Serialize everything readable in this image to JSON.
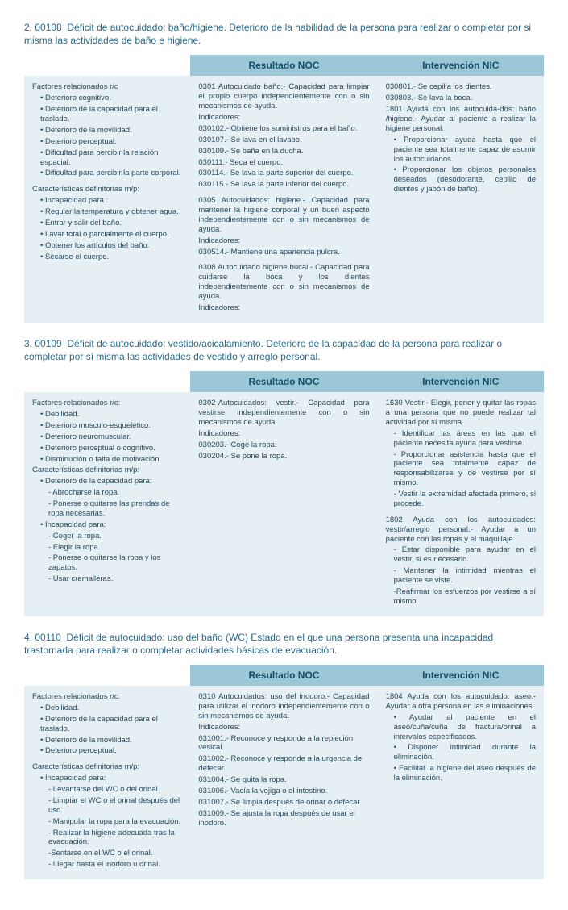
{
  "colors": {
    "header_bg": "#9cc7d6",
    "header_text": "#14506a",
    "cell_bg": "#e6eff3",
    "body_text": "#2a4a5a",
    "title_text": "#2a6a8a",
    "page_bg": "#ffffff"
  },
  "typography": {
    "body_font_size_pt": 9.5,
    "header_font_size_pt": 12,
    "title_font_size_pt": 12,
    "font_family": "Arial"
  },
  "headers": {
    "noc": "Resultado NOC",
    "nic": "Intervención NIC"
  },
  "sections": [
    {
      "num": "2. 00108",
      "title": "Déficit de autocuidado: baño/higiene. Deterioro de la habilidad de la persona para realizar o completar por si misma las actividades de baño e higiene.",
      "col1": {
        "group1_label": "Factores relacionados r/c",
        "group1_items": [
          "• Deterioro cognitivo.",
          "• Deterioro de la capacidad para el traslado.",
          "• Deterioro de la movilidad.",
          "• Deterioro perceptual.",
          "• Dificultad para percibir la relación espacial.",
          "• Dificultad para percibir la parte corporal."
        ],
        "group2_label": "Características definitorias m/p:",
        "group2_sub": "• Incapacidad para :",
        "group2_items": [
          "• Regular la temperatura y obtener agua.",
          "• Entrar y salir del baño.",
          "• Lavar total o parcialmente el cuerpo.",
          "• Obtener los artículos del baño.",
          "• Secarse el cuerpo."
        ]
      },
      "col2": {
        "block1_title": "0301 Autocuidado baño.- Capacidad para limpiar el propio cuerpo independientemente con o sin mecanismos de ayuda.",
        "block1_label": "Indicadores:",
        "block1_items": [
          "030102.- Obtiene los suministros para el baño.",
          "030107.- Se lava en el lavabo.",
          "030109.- Se baña en la ducha.",
          "030111.- Seca el cuerpo.",
          "030114.- Se lava la parte superior del cuerpo.",
          "030115.- Se lava la parte inferior del cuerpo."
        ],
        "block2_title": "0305 Autocuidados: higiene.- Capacidad para mantener la higiene corporal y un buen aspecto independientemente con o sin mecanismos de ayuda.",
        "block2_label": "Indicadores:",
        "block2_items": [
          "030514.- Mantiene una apariencia pulcra."
        ],
        "block3_title": "0308 Autocuidado higiene bucal.- Capacidad para cuidarse la boca y los dientes independientemente con o sin mecanismos de ayuda.",
        "block3_label": "Indicadores:"
      },
      "col3": {
        "lines": [
          "030801.- Se cepilla los dientes.",
          "030803.- Se lava la boca."
        ],
        "block1_title": "1801 Ayuda con los autocuida-dos: baño /higiene.- Ayudar al paciente a realizar la higiene personal.",
        "block1_items": [
          "• Proporcionar ayuda hasta que el paciente sea totalmente capaz de asumir los autocuidados.",
          "• Proporcionar los objetos personales deseados (desodorante, cepillo de dientes y jabón de baño)."
        ]
      }
    },
    {
      "num": "3. 00109",
      "title": "Déficit de autocuidado: vestido/acicalamiento. Deterioro de la capacidad de la persona para realizar o completar por sí misma las actividades de vestido y arreglo personal.",
      "col1": {
        "group1_label": "Factores relacionados r/c:",
        "group1_items": [
          "• Debilidad.",
          "• Deterioro musculo-esquelético.",
          "• Deterioro neuromuscular.",
          "• Deterioro perceptual o cognitivo.",
          "• Disminución o falta de motivación."
        ],
        "group2_label": "Características definitorias m/p:",
        "group2_sub": "• Deterioro de la capacidad para:",
        "group2_items": [
          "- Abrocharse la ropa.",
          "- Ponerse o quitarse las prendas de ropa necesarias."
        ],
        "group3_sub": "• Incapacidad para:",
        "group3_items": [
          "- Coger la ropa.",
          "- Elegir la ropa.",
          "- Ponerse o quitarse la ropa y los zapatos.",
          "- Usar cremalleras."
        ]
      },
      "col2": {
        "block1_title": "0302-Autocuidados: vestir.- Capacidad para vestirse independientemente con o sin mecanismos de ayuda.",
        "block1_label": "Indicadores:",
        "block1_items": [
          "030203.- Coge la ropa.",
          "030204.- Se pone la ropa."
        ]
      },
      "col3": {
        "block1_title": "1630 Vestir.- Elegir, poner y quitar las ropas a una persona que no puede realizar tal actividad por sí misma.",
        "block1_items": [
          "- Identificar las áreas en las que el paciente necesita ayuda para vestirse.",
          "- Proporcionar asistencia hasta que el paciente sea totalmente capaz de responsabilizarse y de vestirse por sí mismo.",
          "- Vestir la extremidad afectada primero, si procede."
        ],
        "block2_title": "1802 Ayuda con los autocuidados: vestir/arreglo personal.- Ayudar a un paciente con las ropas y el maquillaje.",
        "block2_items": [
          "- Estar disponible para ayudar en el vestir, si es necesario.",
          "- Mantener la intimidad mientras el paciente se viste.",
          "-Reafirmar los esfuerzos por vestirse a sí mismo."
        ]
      }
    },
    {
      "num": "4. 00110",
      "title": "Déficit de autocuidado: uso del baño (WC) Estado en el que una persona presenta una incapacidad trastornada para realizar o completar actividades básicas de evacuación.",
      "col1": {
        "group1_label": "Factores relacionados r/c:",
        "group1_items": [
          "• Debilidad.",
          "• Deterioro de la capacidad para el traslado.",
          "• Deterioro de la movilidad.",
          "• Deterioro perceptual."
        ],
        "group2_label": "Características definitorias m/p:",
        "group2_sub": "• Incapacidad para:",
        "group2_items": [
          "- Levantarse del WC o del orinal.",
          "- Limpiar el WC o el orinal después del uso.",
          "- Manipular la ropa para la evacuación.",
          "- Realizar la higiene adecuada tras la evacuación.",
          "-Sentarse en el WC  o el orinal.",
          "- Llegar hasta el inodoro u orinal."
        ]
      },
      "col2": {
        "block1_title": "0310 Autocuidados: uso del inodoro.- Capacidad para utilizar el inodoro independientemente con o sin mecanismos de ayuda.",
        "block1_label": "Indicadores:",
        "block1_items": [
          "031001.- Reconoce y responde a la repleción vesical.",
          "031002.- Reconoce y responde a la urgencia de defecar.",
          "031004.- Se quita la ropa.",
          "031006.- Vacía la vejiga o el intestino.",
          "031007.- Se limpia después de orinar o defecar.",
          "031009.- Se ajusta la ropa después de usar el inodoro."
        ]
      },
      "col3": {
        "block1_title": "1804 Ayuda con los autocuidado: aseo.- Ayudar a otra persona en las eliminaciones.",
        "block1_items": [
          "• Ayudar al paciente en el aseo/cuña/cuña de fractura/orinal a intervalos especificados.",
          "• Disponer intimidad durante la eliminación.",
          "• Facilitar la higiene del aseo después de la eliminación."
        ]
      }
    }
  ]
}
